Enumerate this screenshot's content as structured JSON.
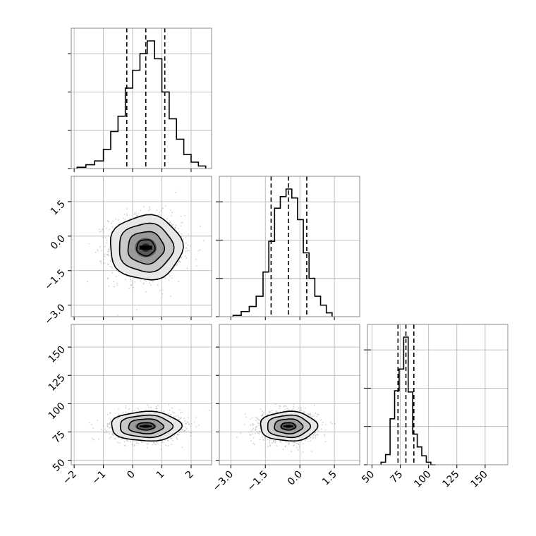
{
  "chart_data": {
    "type": "corner",
    "grid": true,
    "colors": {
      "line": "#000000",
      "grid": "#b0b0b0",
      "scatter": "#a8a8a8",
      "frame": "#888888"
    },
    "params": [
      {
        "range": [
          -2.1,
          2.7
        ],
        "ticks": [
          "-2",
          "-1",
          "0",
          "1",
          "2"
        ],
        "tickValues": [
          -2,
          -1,
          0,
          1,
          2
        ]
      },
      {
        "range": [
          -3.5,
          2.6
        ],
        "ticks": [
          "-3.0",
          "-1.5",
          "0.0",
          "1.5"
        ],
        "tickValues": [
          -3.0,
          -1.5,
          0.0,
          1.5
        ]
      },
      {
        "range": [
          46,
          170
        ],
        "ticks": [
          "50",
          "75",
          "100",
          "125",
          "150"
        ],
        "tickValues": [
          50,
          75,
          100,
          125,
          150
        ]
      }
    ],
    "quantiles": [
      [
        -0.2,
        0.45,
        1.1
      ],
      [
        -1.25,
        -0.5,
        0.3
      ],
      [
        73,
        80,
        87
      ]
    ],
    "histograms": [
      {
        "edges": [
          -1.9,
          -1.6,
          -1.3,
          -1.0,
          -0.75,
          -0.5,
          -0.25,
          0.0,
          0.25,
          0.5,
          0.75,
          1.0,
          1.25,
          1.5,
          1.75,
          2.0,
          2.25,
          2.5
        ],
        "counts": [
          0.01,
          0.03,
          0.06,
          0.15,
          0.29,
          0.41,
          0.63,
          0.77,
          0.9,
          1.0,
          0.86,
          0.6,
          0.39,
          0.23,
          0.11,
          0.05,
          0.02
        ]
      },
      {
        "edges": [
          -2.9,
          -2.55,
          -2.2,
          -1.9,
          -1.6,
          -1.35,
          -1.1,
          -0.85,
          -0.6,
          -0.35,
          -0.1,
          0.15,
          0.4,
          0.65,
          0.9,
          1.15,
          1.4
        ],
        "counts": [
          0.01,
          0.04,
          0.08,
          0.16,
          0.35,
          0.59,
          0.85,
          0.94,
          1.0,
          0.93,
          0.76,
          0.5,
          0.3,
          0.16,
          0.09,
          0.03
        ]
      },
      {
        "edges": [
          58,
          62,
          66,
          70,
          74,
          78,
          82,
          86,
          90,
          94,
          98,
          102,
          106
        ],
        "counts": [
          0.02,
          0.08,
          0.36,
          0.58,
          0.75,
          1.0,
          0.57,
          0.24,
          0.14,
          0.07,
          0.02,
          0.0
        ]
      }
    ],
    "joint": [
      {
        "pair": [
          0,
          1
        ],
        "center": [
          0.45,
          -0.5
        ],
        "sigma": [
          0.62,
          0.7
        ],
        "rho": 0
      },
      {
        "pair": [
          0,
          2
        ],
        "center": [
          0.45,
          80
        ],
        "sigma": [
          0.6,
          6.5
        ],
        "rho": 0
      },
      {
        "pair": [
          1,
          2
        ],
        "center": [
          -0.5,
          80
        ],
        "sigma": [
          0.62,
          6.5
        ],
        "rho": 0
      }
    ]
  }
}
